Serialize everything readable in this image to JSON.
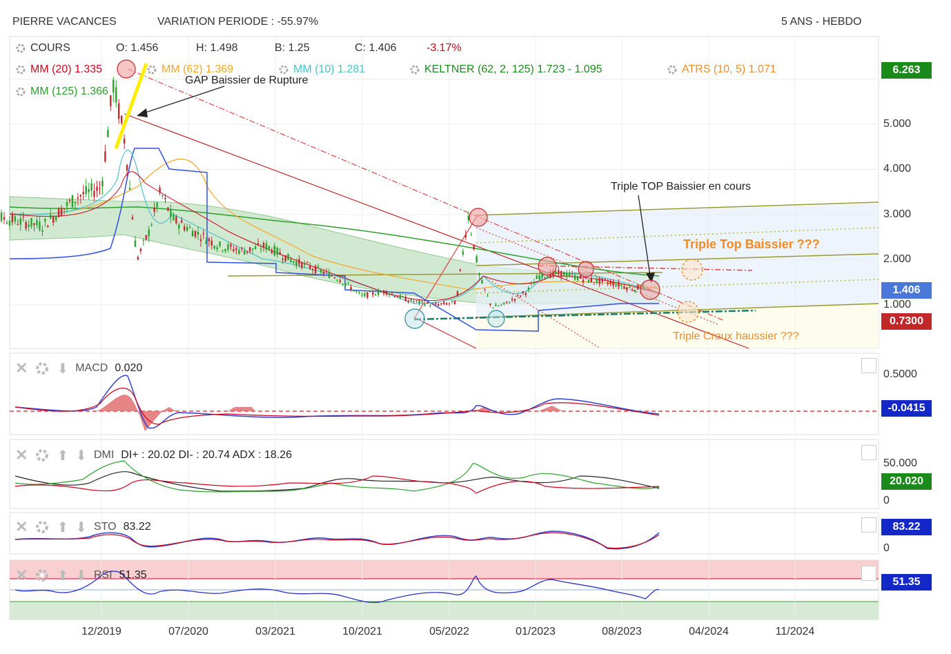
{
  "header": {
    "symbol": "PIERRE VACANCES",
    "variation": "VARIATION PERIODE : -55.97%",
    "period": "5 ANS - HEBDO"
  },
  "legend": {
    "cours_label": "COURS",
    "open": "O: 1.456",
    "high": "H: 1.498",
    "low": "B: 1.25",
    "close": "C: 1.406",
    "change": "-3.17%",
    "mm20": "MM (20)  1.335",
    "mm62": "MM (62)  1.369",
    "mm10": "MM (10)  1.281",
    "keltner": "KELTNER (62, 2, 125)  1.723 - 1.095",
    "atrs": "ATRS (10, 5)  1.071",
    "mm125": "MM (125)  1.366"
  },
  "annotations": {
    "gap": "GAP Baissier de Rupture",
    "triple_top_note": "Triple TOP Baissier en cours",
    "triple_top": "Triple Top Baissier ???",
    "triple_creux": "Triple Creux haussier ???"
  },
  "price_axis": {
    "ticks": [
      "5.000",
      "4.000",
      "3.000",
      "2.000",
      "1.000"
    ],
    "badges": [
      "6.263",
      "1.406",
      "0.7300"
    ]
  },
  "panels": {
    "macd": {
      "label": "MACD",
      "value": "0.020",
      "ticks": [
        "0.5000"
      ],
      "badge": "-0.0415"
    },
    "dmi": {
      "label": "DMI",
      "value": "DI+ : 20.02 DI- : 20.74 ADX : 18.26",
      "ticks": [
        "50.000",
        "0"
      ],
      "badge": "20.020"
    },
    "sto": {
      "label": "STO",
      "value": "83.22",
      "ticks": [
        "0"
      ],
      "badge": "83.22"
    },
    "rsi": {
      "label": "RSI",
      "value": "51.35",
      "badge": "51.35"
    }
  },
  "x_axis": [
    "12/2019",
    "07/2020",
    "03/2021",
    "10/2021",
    "05/2022",
    "01/2023",
    "08/2023",
    "04/2024",
    "11/2024"
  ],
  "colors": {
    "mm20": "#d0021b",
    "mm62": "#f5a623",
    "mm10": "#4ac0c8",
    "keltner": "#1a8a1a",
    "atrs": "#f08c28",
    "mm125": "#2aa02a",
    "badge_green": "#1a8a1a",
    "badge_blue": "#4a78d8",
    "badge_red": "#c0282c",
    "badge_navy": "#1428c8"
  },
  "chart_data": {
    "type": "line",
    "title": "PIERRE VACANCES",
    "xlabel": "",
    "ylabel": "",
    "ylim": [
      0.3,
      6.3
    ],
    "series": [
      {
        "name": "COURS",
        "x": [
          "2019-01",
          "2019-04",
          "2019-07",
          "2019-10",
          "2019-12",
          "2020-01",
          "2020-02",
          "2020-03",
          "2020-04",
          "2020-05",
          "2020-06",
          "2020-08",
          "2020-10",
          "2020-12",
          "2021-02",
          "2021-04",
          "2021-06",
          "2021-08",
          "2021-10",
          "2021-12",
          "2022-02",
          "2022-04",
          "2022-06",
          "2022-07",
          "2022-08",
          "2022-09",
          "2022-10",
          "2022-12",
          "2023-01",
          "2023-03",
          "2023-05",
          "2023-07",
          "2023-09",
          "2023-10"
        ],
        "values": [
          3.1,
          2.9,
          2.75,
          3.4,
          3.6,
          5.9,
          4.6,
          2.0,
          2.6,
          3.5,
          2.9,
          2.6,
          2.3,
          2.2,
          2.3,
          2.0,
          1.8,
          1.6,
          1.2,
          1.3,
          1.1,
          1.0,
          1.05,
          3.0,
          1.6,
          0.95,
          1.0,
          1.3,
          1.65,
          1.7,
          1.55,
          1.5,
          1.35,
          1.406
        ]
      }
    ]
  }
}
